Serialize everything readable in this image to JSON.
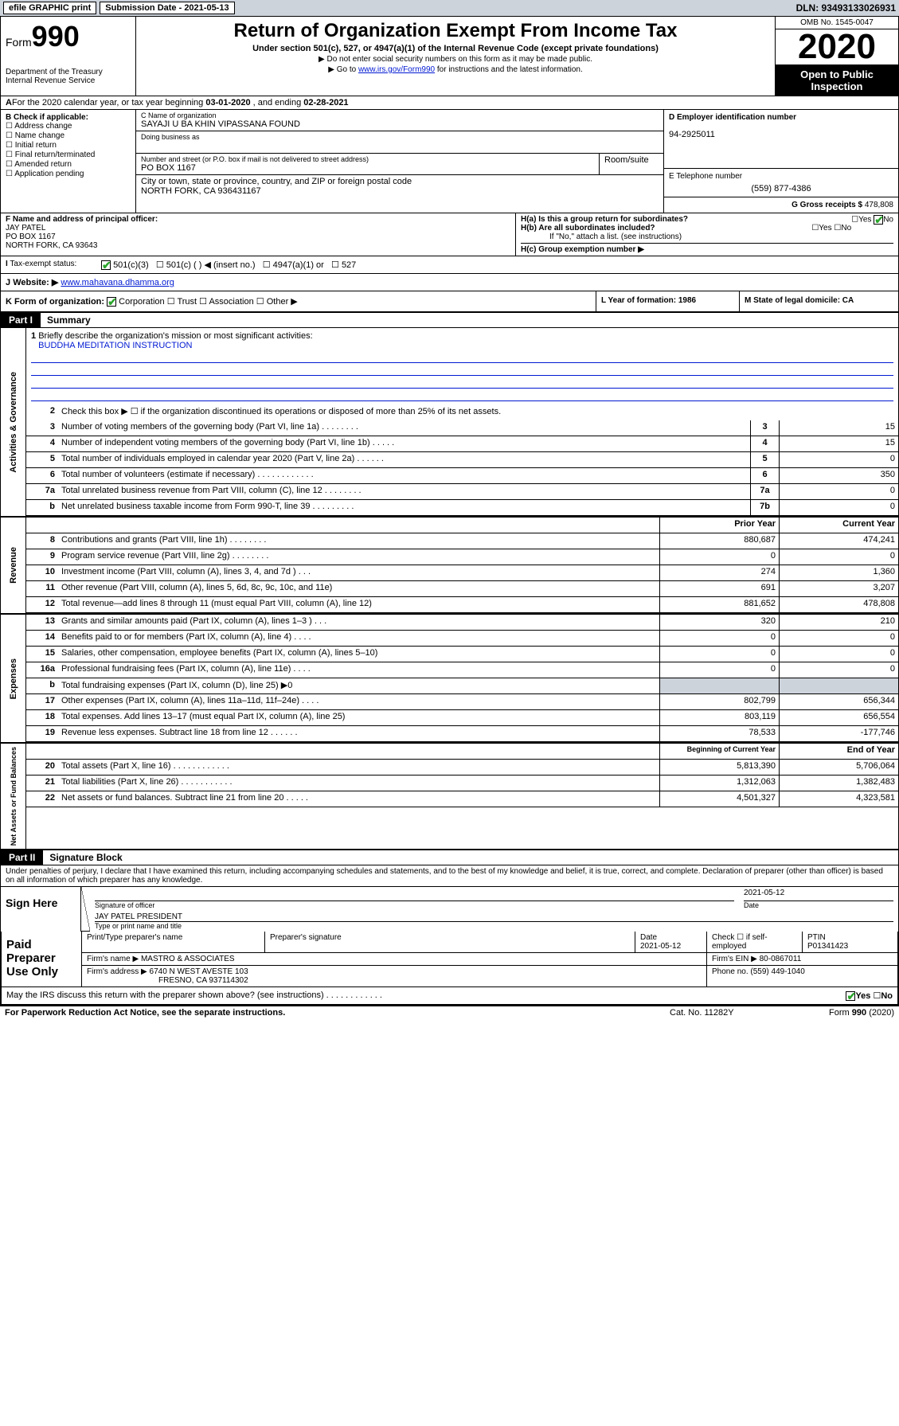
{
  "topbar": {
    "efile": "efile GRAPHIC print",
    "subdate_label": "Submission Date - 2021-05-13",
    "dln": "DLN: 93493133026931"
  },
  "header": {
    "form_label": "Form",
    "form_num": "990",
    "dept": "Department of the Treasury\nInternal Revenue Service",
    "title": "Return of Organization Exempt From Income Tax",
    "subtitle": "Under section 501(c), 527, or 4947(a)(1) of the Internal Revenue Code (except private foundations)",
    "note1": "▶ Do not enter social security numbers on this form as it may be made public.",
    "note2_pre": "▶ Go to ",
    "note2_link": "www.irs.gov/Form990",
    "note2_post": " for instructions and the latest information.",
    "omb": "OMB No. 1545-0047",
    "year": "2020",
    "open": "Open to Public Inspection"
  },
  "rowA": {
    "text_pre": "For the 2020 calendar year, or tax year beginning ",
    "begin": "03-01-2020",
    "text_mid": " , and ending ",
    "end": "02-28-2021"
  },
  "colB": {
    "header": "B Check if applicable:",
    "items": [
      "Address change",
      "Name change",
      "Initial return",
      "Final return/terminated",
      "Amended return",
      "Application pending"
    ]
  },
  "colC": {
    "name_lbl": "C Name of organization",
    "name": "SAYAJI U BA KHIN VIPASSANA FOUND",
    "dba_lbl": "Doing business as",
    "addr_lbl": "Number and street (or P.O. box if mail is not delivered to street address)",
    "room_lbl": "Room/suite",
    "addr": "PO BOX 1167",
    "city_lbl": "City or town, state or province, country, and ZIP or foreign postal code",
    "city": "NORTH FORK, CA  936431167"
  },
  "colD": {
    "lbl": "D Employer identification number",
    "val": "94-2925011"
  },
  "colE": {
    "lbl": "E Telephone number",
    "val": "(559) 877-4386"
  },
  "colG": {
    "lbl": "G Gross receipts $ ",
    "val": "478,808"
  },
  "colF": {
    "lbl": "F Name and address of principal officer:",
    "name": "JAY PATEL",
    "addr1": "PO BOX 1167",
    "addr2": "NORTH FORK, CA  93643"
  },
  "colH": {
    "ha": "H(a) Is this a group return for subordinates?",
    "hb": "H(b) Are all subordinates included?",
    "hb_note": "If \"No,\" attach a list. (see instructions)",
    "hc": "H(c) Group exemption number ▶"
  },
  "taxI": {
    "lbl": "Tax-exempt status:",
    "opts": [
      "501(c)(3)",
      "501(c) (  ) ◀ (insert no.)",
      "4947(a)(1) or",
      "527"
    ]
  },
  "rowJ": {
    "lbl": "Website: ▶",
    "val": "www.mahavana.dhamma.org"
  },
  "rowK": {
    "lbl": "K Form of organization:",
    "opts": [
      "Corporation",
      "Trust",
      "Association",
      "Other ▶"
    ],
    "L": "L Year of formation: 1986",
    "M": "M State of legal domicile: CA"
  },
  "part1": {
    "tag": "Part I",
    "title": "Summary",
    "side_ag": "Activities & Governance",
    "side_rev": "Revenue",
    "side_exp": "Expenses",
    "side_na": "Net Assets or Fund Balances",
    "mission_lbl": "Briefly describe the organization's mission or most significant activities:",
    "mission": "BUDDHA MEDITATION INSTRUCTION",
    "line2": "Check this box ▶ ☐ if the organization discontinued its operations or disposed of more than 25% of its net assets.",
    "lines_gov": [
      {
        "n": "3",
        "t": "Number of voting members of the governing body (Part VI, line 1a)   .    .    .    .    .    .    .    .",
        "b": "3",
        "v": "15"
      },
      {
        "n": "4",
        "t": "Number of independent voting members of the governing body (Part VI, line 1b)   .    .    .    .    .",
        "b": "4",
        "v": "15"
      },
      {
        "n": "5",
        "t": "Total number of individuals employed in calendar year 2020 (Part V, line 2a)   .    .    .    .    .    .",
        "b": "5",
        "v": "0"
      },
      {
        "n": "6",
        "t": "Total number of volunteers (estimate if necessary)   .    .    .    .    .    .    .    .    .    .    .    .",
        "b": "6",
        "v": "350"
      },
      {
        "n": "7a",
        "t": "Total unrelated business revenue from Part VIII, column (C), line 12   .    .    .    .    .    .    .    .",
        "b": "7a",
        "v": "0"
      },
      {
        "n": "b",
        "t": "Net unrelated business taxable income from Form 990-T, line 39   .    .    .    .    .    .    .    .    .",
        "b": "7b",
        "v": "0"
      }
    ],
    "col_hdr_prior": "Prior Year",
    "col_hdr_curr": "Current Year",
    "lines_rev": [
      {
        "n": "8",
        "t": "Contributions and grants (Part VIII, line 1h)   .    .    .    .    .    .    .    .",
        "p": "880,687",
        "c": "474,241"
      },
      {
        "n": "9",
        "t": "Program service revenue (Part VIII, line 2g)   .    .    .    .    .    .    .    .",
        "p": "0",
        "c": "0"
      },
      {
        "n": "10",
        "t": "Investment income (Part VIII, column (A), lines 3, 4, and 7d )   .    .    .",
        "p": "274",
        "c": "1,360"
      },
      {
        "n": "11",
        "t": "Other revenue (Part VIII, column (A), lines 5, 6d, 8c, 9c, 10c, and 11e)",
        "p": "691",
        "c": "3,207"
      },
      {
        "n": "12",
        "t": "Total revenue—add lines 8 through 11 (must equal Part VIII, column (A), line 12)",
        "p": "881,652",
        "c": "478,808"
      }
    ],
    "lines_exp": [
      {
        "n": "13",
        "t": "Grants and similar amounts paid (Part IX, column (A), lines 1–3 )   .    .    .",
        "p": "320",
        "c": "210"
      },
      {
        "n": "14",
        "t": "Benefits paid to or for members (Part IX, column (A), line 4)   .    .    .    .",
        "p": "0",
        "c": "0"
      },
      {
        "n": "15",
        "t": "Salaries, other compensation, employee benefits (Part IX, column (A), lines 5–10)",
        "p": "0",
        "c": "0"
      },
      {
        "n": "16a",
        "t": "Professional fundraising fees (Part IX, column (A), line 11e)   .    .    .    .",
        "p": "0",
        "c": "0"
      },
      {
        "n": "b",
        "t": "Total fundraising expenses (Part IX, column (D), line 25) ▶0",
        "p": "",
        "c": "",
        "shaded": true
      },
      {
        "n": "17",
        "t": "Other expenses (Part IX, column (A), lines 11a–11d, 11f–24e)   .    .    .    .",
        "p": "802,799",
        "c": "656,344"
      },
      {
        "n": "18",
        "t": "Total expenses. Add lines 13–17 (must equal Part IX, column (A), line 25)",
        "p": "803,119",
        "c": "656,554"
      },
      {
        "n": "19",
        "t": "Revenue less expenses. Subtract line 18 from line 12   .    .    .    .    .    .",
        "p": "78,533",
        "c": "-177,746"
      }
    ],
    "col_hdr_beg": "Beginning of Current Year",
    "col_hdr_end": "End of Year",
    "lines_na": [
      {
        "n": "20",
        "t": "Total assets (Part X, line 16)   .    .    .    .    .    .    .    .    .    .    .    .",
        "p": "5,813,390",
        "c": "5,706,064"
      },
      {
        "n": "21",
        "t": "Total liabilities (Part X, line 26)   .    .    .    .    .    .    .    .    .    .    .",
        "p": "1,312,063",
        "c": "1,382,483"
      },
      {
        "n": "22",
        "t": "Net assets or fund balances. Subtract line 21 from line 20   .    .    .    .    .",
        "p": "4,501,327",
        "c": "4,323,581"
      }
    ]
  },
  "part2": {
    "tag": "Part II",
    "title": "Signature Block",
    "perjury": "Under penalties of perjury, I declare that I have examined this return, including accompanying schedules and statements, and to the best of my knowledge and belief, it is true, correct, and complete. Declaration of preparer (other than officer) is based on all information of which preparer has any knowledge.",
    "sign_here": "Sign Here",
    "sig_officer": "Signature of officer",
    "date": "2021-05-12",
    "date_lbl": "Date",
    "officer_name": "JAY PATEL PRESIDENT",
    "type_name": "Type or print name and title",
    "paid": "Paid Preparer Use Only",
    "prep_name_lbl": "Print/Type preparer's name",
    "prep_sig_lbl": "Preparer's signature",
    "prep_date_lbl": "Date",
    "prep_date": "2021-05-12",
    "check_self": "Check ☐ if self-employed",
    "ptin_lbl": "PTIN",
    "ptin": "P01341423",
    "firm_name_lbl": "Firm's name    ▶",
    "firm_name": "MASTRO & ASSOCIATES",
    "firm_ein_lbl": "Firm's EIN ▶",
    "firm_ein": "80-0867011",
    "firm_addr_lbl": "Firm's address ▶",
    "firm_addr": "6740 N WEST AVESTE 103",
    "firm_city": "FRESNO, CA  937114302",
    "phone_lbl": "Phone no.",
    "phone": "(559) 449-1040",
    "discuss": "May the IRS discuss this return with the preparer shown above? (see instructions)   .    .    .    .    .    .    .    .    .    .    .    .",
    "yes": "Yes",
    "no": "No"
  },
  "footer": {
    "pra": "For Paperwork Reduction Act Notice, see the separate instructions.",
    "cat": "Cat. No. 11282Y",
    "form": "Form 990 (2020)"
  }
}
